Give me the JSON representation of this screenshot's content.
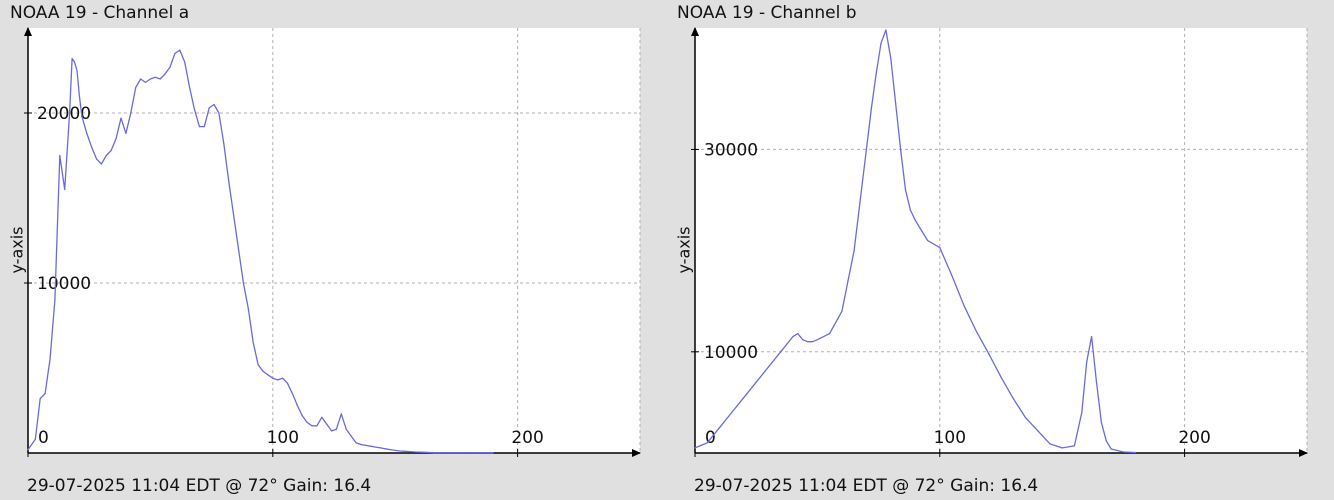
{
  "chart_data": [
    {
      "type": "line",
      "title": "NOAA 19 - Channel a",
      "footer": "29-07-2025 11:04 EDT @ 72° Gain: 16.4",
      "ylabel": "y-axis",
      "xlim": [
        0,
        250
      ],
      "ylim": [
        0,
        25000
      ],
      "x_ticks": [
        0,
        100,
        200
      ],
      "y_ticks": [
        10000,
        20000
      ],
      "grid": true,
      "color": "#6a6ae0",
      "x": [
        0,
        3,
        5,
        7,
        9,
        11,
        13,
        15,
        17,
        18,
        19,
        20,
        21,
        22,
        24,
        26,
        28,
        30,
        32,
        34,
        36,
        38,
        40,
        42,
        44,
        46,
        48,
        50,
        52,
        54,
        56,
        58,
        60,
        62,
        64,
        66,
        68,
        70,
        72,
        74,
        76,
        78,
        80,
        82,
        84,
        86,
        88,
        90,
        92,
        94,
        96,
        98,
        100,
        102,
        104,
        106,
        108,
        110,
        112,
        114,
        116,
        118,
        120,
        122,
        124,
        126,
        128,
        130,
        132,
        134,
        136,
        138,
        140,
        142,
        144,
        146,
        148,
        150,
        152,
        154,
        156,
        158,
        160,
        162,
        164,
        166,
        168,
        170,
        172,
        174,
        176,
        178,
        180,
        182,
        184,
        186,
        188,
        190
      ],
      "values": [
        200,
        800,
        3200,
        3500,
        5500,
        9000,
        17500,
        15500,
        20000,
        23200,
        23000,
        22500,
        21000,
        19800,
        18800,
        18000,
        17300,
        17000,
        17500,
        17800,
        18500,
        19700,
        18800,
        20000,
        21500,
        22000,
        21800,
        22000,
        22100,
        22000,
        22300,
        22700,
        23500,
        23700,
        23000,
        21500,
        20200,
        19200,
        19200,
        20300,
        20500,
        20000,
        18200,
        16000,
        14000,
        12000,
        10000,
        8500,
        6500,
        5200,
        4800,
        4600,
        4400,
        4300,
        4400,
        4100,
        3500,
        2800,
        2200,
        1800,
        1600,
        1600,
        2100,
        1700,
        1300,
        1400,
        2300,
        1400,
        1000,
        600,
        500,
        450,
        400,
        350,
        300,
        250,
        200,
        150,
        120,
        100,
        80,
        60,
        50,
        40,
        30,
        20,
        20,
        20,
        20,
        20,
        20,
        20,
        20,
        20,
        20,
        20,
        20,
        20
      ]
    },
    {
      "type": "line",
      "title": "NOAA 19 - Channel b",
      "footer": "29-07-2025 11:04 EDT @ 72° Gain: 16.4",
      "ylabel": "y-axis",
      "xlim": [
        0,
        250
      ],
      "ylim": [
        0,
        42000
      ],
      "x_ticks": [
        0,
        100,
        200
      ],
      "y_ticks": [
        10000,
        30000
      ],
      "grid": true,
      "color": "#6a6ae0",
      "x": [
        0,
        5,
        10,
        15,
        20,
        25,
        30,
        35,
        40,
        42,
        44,
        46,
        48,
        50,
        55,
        60,
        65,
        70,
        72,
        74,
        76,
        78,
        80,
        82,
        84,
        86,
        88,
        90,
        95,
        100,
        105,
        110,
        115,
        120,
        125,
        130,
        135,
        140,
        145,
        150,
        155,
        158,
        160,
        162,
        164,
        166,
        168,
        170,
        175,
        180
      ],
      "values": [
        500,
        1000,
        2500,
        4000,
        5500,
        7000,
        8500,
        10000,
        11500,
        11800,
        11200,
        11000,
        11000,
        11200,
        11800,
        14000,
        20000,
        30000,
        34000,
        37500,
        40500,
        41800,
        39000,
        34500,
        30000,
        26000,
        24000,
        23000,
        21000,
        20300,
        17500,
        14500,
        12000,
        9800,
        7500,
        5400,
        3500,
        2200,
        900,
        500,
        700,
        4000,
        9000,
        11500,
        7000,
        3000,
        1200,
        400,
        100,
        50
      ]
    }
  ]
}
